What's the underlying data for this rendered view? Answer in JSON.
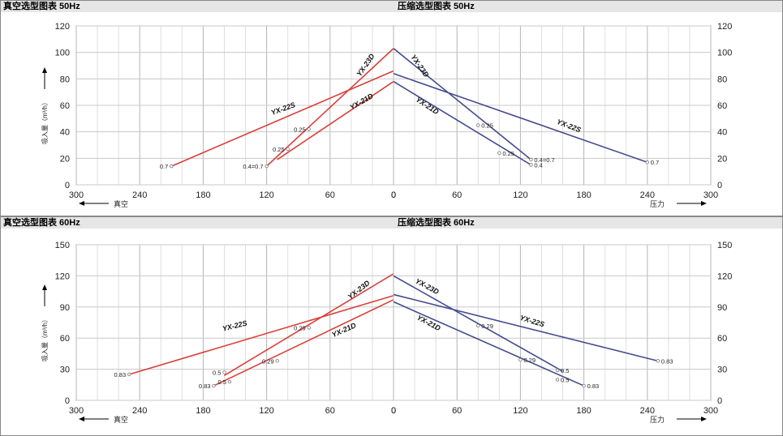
{
  "panels": [
    {
      "id": "p50",
      "vacuum_title": "真空选型图表 50Hz",
      "pressure_title": "压缩选型图表 50Hz"
    },
    {
      "id": "p60",
      "vacuum_title": "真空选型图表 60Hz",
      "pressure_title": "压缩选型图表 60Hz"
    }
  ],
  "chart_data": [
    {
      "type": "line",
      "title": "真空选型图表 50Hz",
      "ylabel": "吸入量（m³/h）",
      "xlabel": "真空",
      "ylim": [
        0,
        120
      ],
      "yticks": [
        0,
        20,
        40,
        60,
        80,
        100,
        120
      ],
      "xlim": [
        300,
        0
      ],
      "xticks": [
        300,
        240,
        180,
        120,
        60,
        0
      ],
      "series": [
        {
          "name": "YX-22S",
          "color": "#d9403a",
          "x": [
            210,
            0
          ],
          "y": [
            14,
            86
          ]
        },
        {
          "name": "YX-23D",
          "color": "#d9403a",
          "x": [
            120,
            0
          ],
          "y": [
            14,
            103
          ]
        },
        {
          "name": "YX-21D",
          "color": "#d9403a",
          "x": [
            110,
            0
          ],
          "y": [
            19,
            78
          ]
        }
      ],
      "annotations": [
        {
          "text": "0.7",
          "x": 210,
          "y": 14
        },
        {
          "text": "0.4=0.7",
          "x": 120,
          "y": 14
        },
        {
          "text": "0.25",
          "x": 100,
          "y": 27
        },
        {
          "text": "0.25",
          "x": 80,
          "y": 42
        }
      ]
    },
    {
      "type": "line",
      "title": "压缩选型图表 50Hz",
      "ylabel": "",
      "xlabel": "压力",
      "ylim": [
        0,
        120
      ],
      "yticks": [
        0,
        20,
        40,
        60,
        80,
        100,
        120
      ],
      "xlim": [
        0,
        300
      ],
      "xticks": [
        0,
        60,
        120,
        180,
        240,
        300
      ],
      "series": [
        {
          "name": "YX-23D",
          "color": "#454b8e",
          "x": [
            0,
            130
          ],
          "y": [
            103,
            19
          ]
        },
        {
          "name": "YX-21D",
          "color": "#454b8e",
          "x": [
            0,
            130
          ],
          "y": [
            78,
            15
          ]
        },
        {
          "name": "YX-22S",
          "color": "#454b8e",
          "x": [
            0,
            240
          ],
          "y": [
            84,
            17
          ]
        }
      ],
      "annotations": [
        {
          "text": "0.25",
          "x": 80,
          "y": 45
        },
        {
          "text": "0.25",
          "x": 100,
          "y": 24
        },
        {
          "text": "0.4=0.7",
          "x": 130,
          "y": 19
        },
        {
          "text": "0.4",
          "x": 130,
          "y": 15
        },
        {
          "text": "0.7",
          "x": 240,
          "y": 17
        }
      ]
    },
    {
      "type": "line",
      "title": "真空选型图表 60Hz",
      "ylabel": "吸入量（m³/h）",
      "xlabel": "真空",
      "ylim": [
        0,
        150
      ],
      "yticks": [
        0,
        30,
        60,
        90,
        120,
        150
      ],
      "xlim": [
        300,
        0
      ],
      "xticks": [
        300,
        240,
        180,
        120,
        60,
        0
      ],
      "series": [
        {
          "name": "YX-22S",
          "color": "#d9403a",
          "x": [
            250,
            0
          ],
          "y": [
            25,
            101
          ]
        },
        {
          "name": "YX-23D",
          "color": "#d9403a",
          "x": [
            160,
            0
          ],
          "y": [
            24,
            122
          ]
        },
        {
          "name": "YX-21D",
          "color": "#d9403a",
          "x": [
            170,
            0
          ],
          "y": [
            14,
            97
          ]
        }
      ],
      "annotations": [
        {
          "text": "0.83",
          "x": 250,
          "y": 25
        },
        {
          "text": "0.83",
          "x": 170,
          "y": 14
        },
        {
          "text": "0.5",
          "x": 160,
          "y": 27
        },
        {
          "text": "0.5",
          "x": 155,
          "y": 18
        },
        {
          "text": "0.29",
          "x": 110,
          "y": 38
        },
        {
          "text": "0.29",
          "x": 80,
          "y": 70
        }
      ]
    },
    {
      "type": "line",
      "title": "压缩选型图表 60Hz",
      "ylabel": "",
      "xlabel": "压力",
      "ylim": [
        0,
        150
      ],
      "yticks": [
        0,
        30,
        60,
        90,
        120,
        150
      ],
      "xlim": [
        0,
        300
      ],
      "xticks": [
        0,
        60,
        120,
        180,
        240,
        300
      ],
      "series": [
        {
          "name": "YX-23D",
          "color": "#454b8e",
          "x": [
            0,
            160
          ],
          "y": [
            120,
            28
          ]
        },
        {
          "name": "YX-21D",
          "color": "#454b8e",
          "x": [
            0,
            180
          ],
          "y": [
            95,
            14
          ]
        },
        {
          "name": "YX-22S",
          "color": "#454b8e",
          "x": [
            0,
            250
          ],
          "y": [
            102,
            38
          ]
        }
      ],
      "annotations": [
        {
          "text": "0.29",
          "x": 80,
          "y": 72
        },
        {
          "text": "0.29",
          "x": 120,
          "y": 39
        },
        {
          "text": "0.5",
          "x": 155,
          "y": 29
        },
        {
          "text": "0.5",
          "x": 155,
          "y": 20
        },
        {
          "text": "0.83",
          "x": 180,
          "y": 14
        },
        {
          "text": "0.83",
          "x": 250,
          "y": 38
        }
      ]
    }
  ]
}
